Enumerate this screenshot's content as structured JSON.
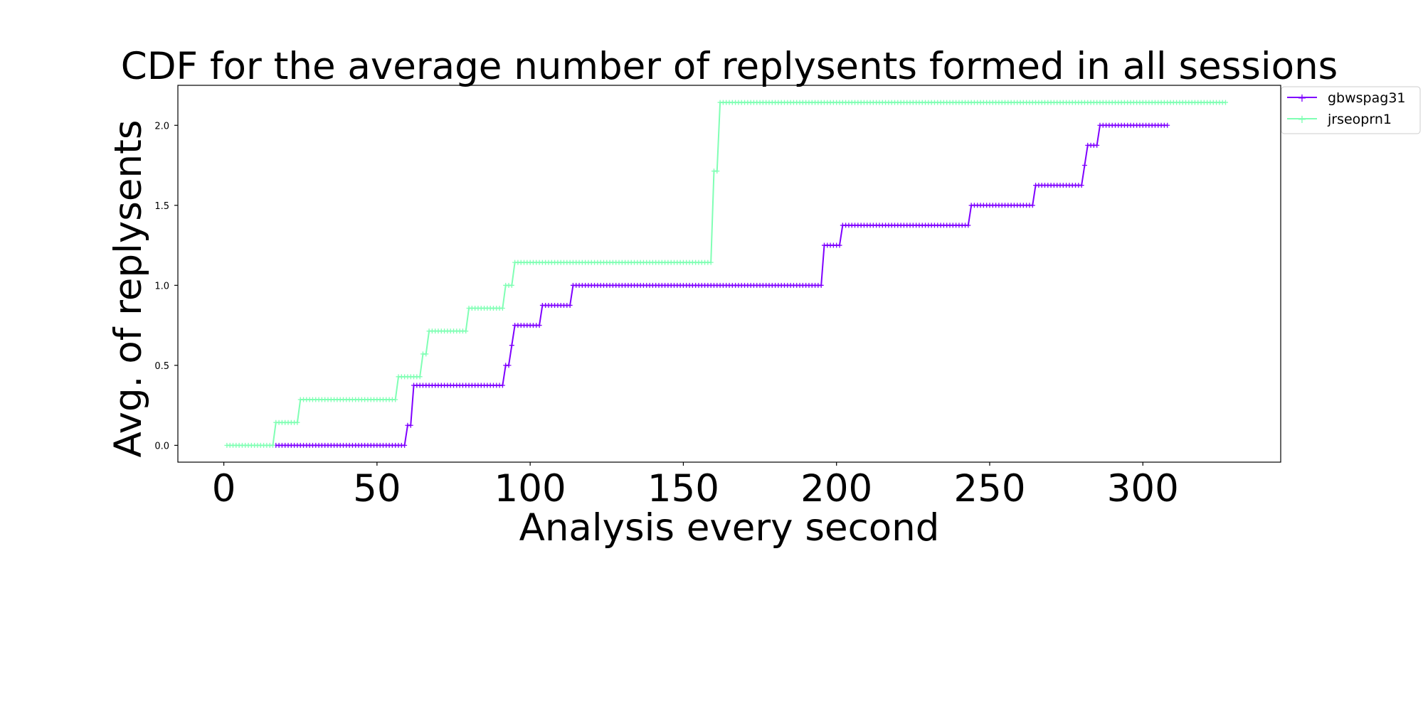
{
  "chart_data": {
    "type": "line",
    "title": "CDF for the average number of replysents formed in all sessions",
    "xlabel": "Analysis every second",
    "ylabel": "Avg. of replysents",
    "xlim": [
      -15,
      345
    ],
    "ylim": [
      -0.105,
      2.25
    ],
    "xticks": [
      0,
      50,
      100,
      150,
      200,
      250,
      300
    ],
    "yticks": [
      0.0,
      0.5,
      1.0,
      1.5,
      2.0
    ],
    "xtick_labels": [
      "0",
      "50",
      "100",
      "150",
      "200",
      "250",
      "300"
    ],
    "ytick_labels": [
      "0.0",
      "0.5",
      "1.0",
      "1.5",
      "2.0"
    ],
    "grid": false,
    "legend_position": "upper-right-outside",
    "marker": "+",
    "series": [
      {
        "name": "gbwspag31",
        "color": "#7f00ff",
        "x_start": 17,
        "x_end": 308,
        "steps": [
          [
            17,
            0.0
          ],
          [
            60,
            0.125
          ],
          [
            62,
            0.375
          ],
          [
            92,
            0.5
          ],
          [
            94,
            0.625
          ],
          [
            95,
            0.75
          ],
          [
            104,
            0.875
          ],
          [
            114,
            1.0
          ],
          [
            196,
            1.25
          ],
          [
            202,
            1.375
          ],
          [
            244,
            1.5
          ],
          [
            265,
            1.625
          ],
          [
            281,
            1.75
          ],
          [
            282,
            1.875
          ],
          [
            286,
            2.0
          ]
        ]
      },
      {
        "name": "jrseoprn1",
        "color": "#80ffb4",
        "x_start": 1,
        "x_end": 327,
        "steps": [
          [
            1,
            0.0
          ],
          [
            17,
            0.143
          ],
          [
            25,
            0.286
          ],
          [
            57,
            0.429
          ],
          [
            65,
            0.571
          ],
          [
            67,
            0.714
          ],
          [
            80,
            0.857
          ],
          [
            92,
            1.0
          ],
          [
            95,
            1.143
          ],
          [
            160,
            1.714
          ],
          [
            162,
            2.143
          ]
        ]
      }
    ]
  }
}
